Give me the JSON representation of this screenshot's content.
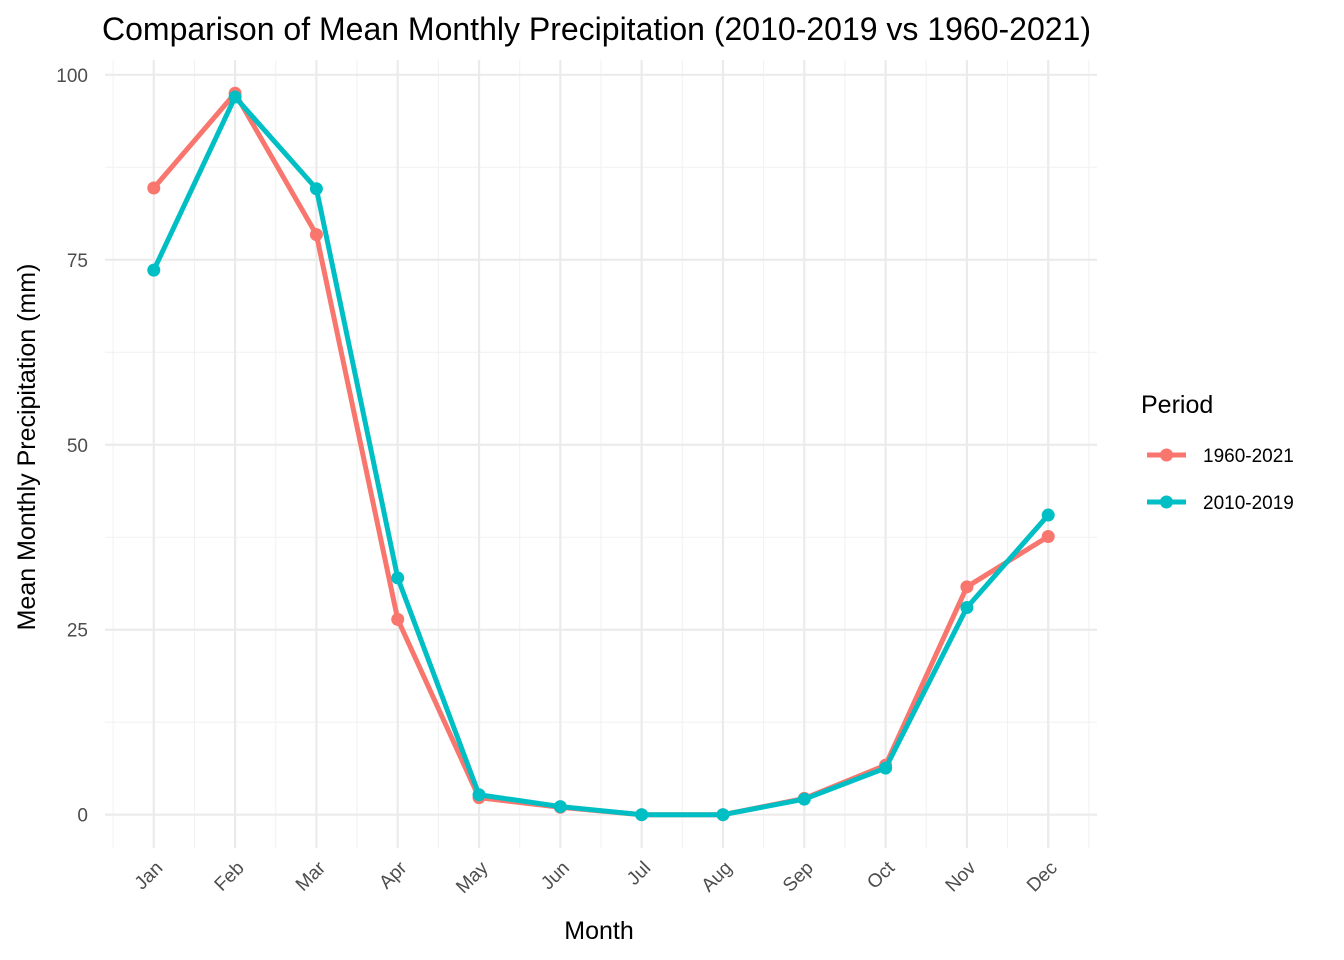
{
  "chart_data": {
    "type": "line",
    "title": "Comparison of Mean Monthly Precipitation (2010-2019 vs 1960-2021)",
    "xlabel": "Month",
    "ylabel": "Mean Monthly Precipitation (mm)",
    "categories": [
      "Jan",
      "Feb",
      "Mar",
      "Apr",
      "May",
      "Jun",
      "Jul",
      "Aug",
      "Sep",
      "Oct",
      "Nov",
      "Dec"
    ],
    "ylim": [
      -4.5,
      102
    ],
    "yticks": [
      0,
      25,
      50,
      75,
      100
    ],
    "grid": true,
    "legend": {
      "title": "Period",
      "position": "right"
    },
    "series": [
      {
        "name": "1960-2021",
        "color": "#F8766D",
        "values": [
          84.7,
          97.5,
          78.4,
          26.4,
          2.3,
          1.0,
          0.0,
          0.0,
          2.2,
          6.7,
          30.8,
          37.6
        ]
      },
      {
        "name": "2010-2019",
        "color": "#00BFC4",
        "values": [
          73.6,
          97.0,
          84.6,
          32.0,
          2.7,
          1.1,
          0.0,
          0.0,
          2.1,
          6.3,
          28.0,
          40.5
        ]
      }
    ]
  }
}
